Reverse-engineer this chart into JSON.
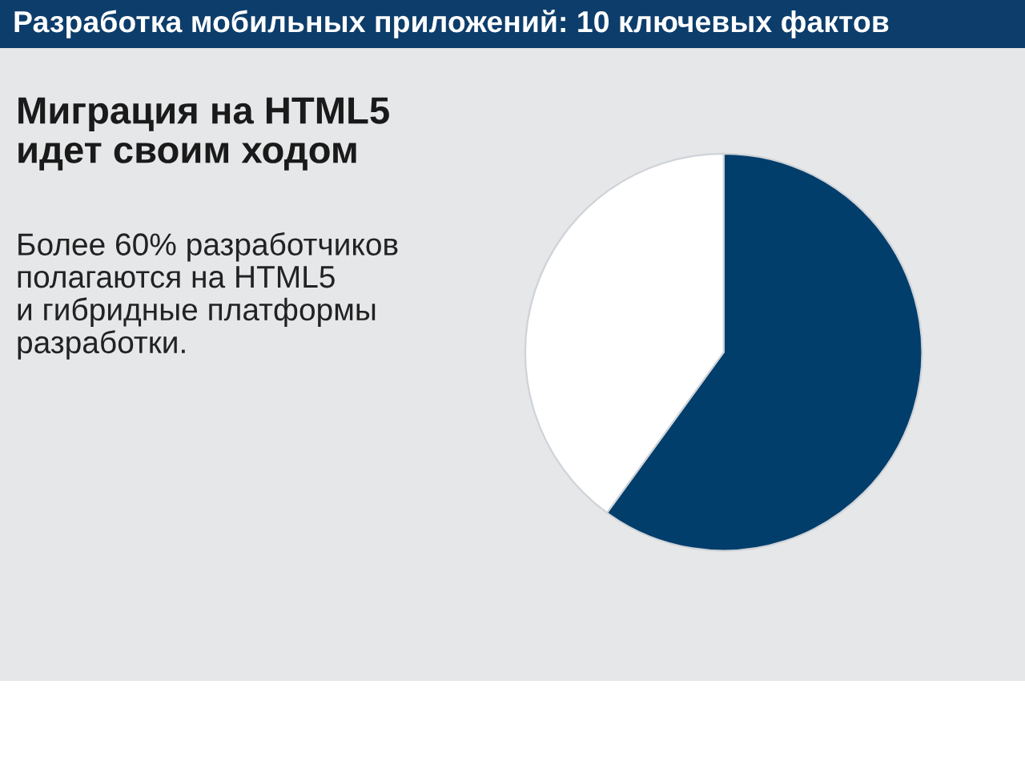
{
  "chart_data": {
    "type": "pie",
    "title": "Разработка мобильных приложений: 10 ключевых фактов",
    "subtitle": "Миграция на HTML5\nидет своим ходом",
    "annotations": [
      "Более 60% разработчиков\nполагаются на HTML5\nи гибридные платформы\nразработки."
    ],
    "categories": [
      null,
      null
    ],
    "values": [
      60,
      40
    ],
    "colors": [
      "#023e6c",
      "#ffffff"
    ],
    "legend": false
  }
}
